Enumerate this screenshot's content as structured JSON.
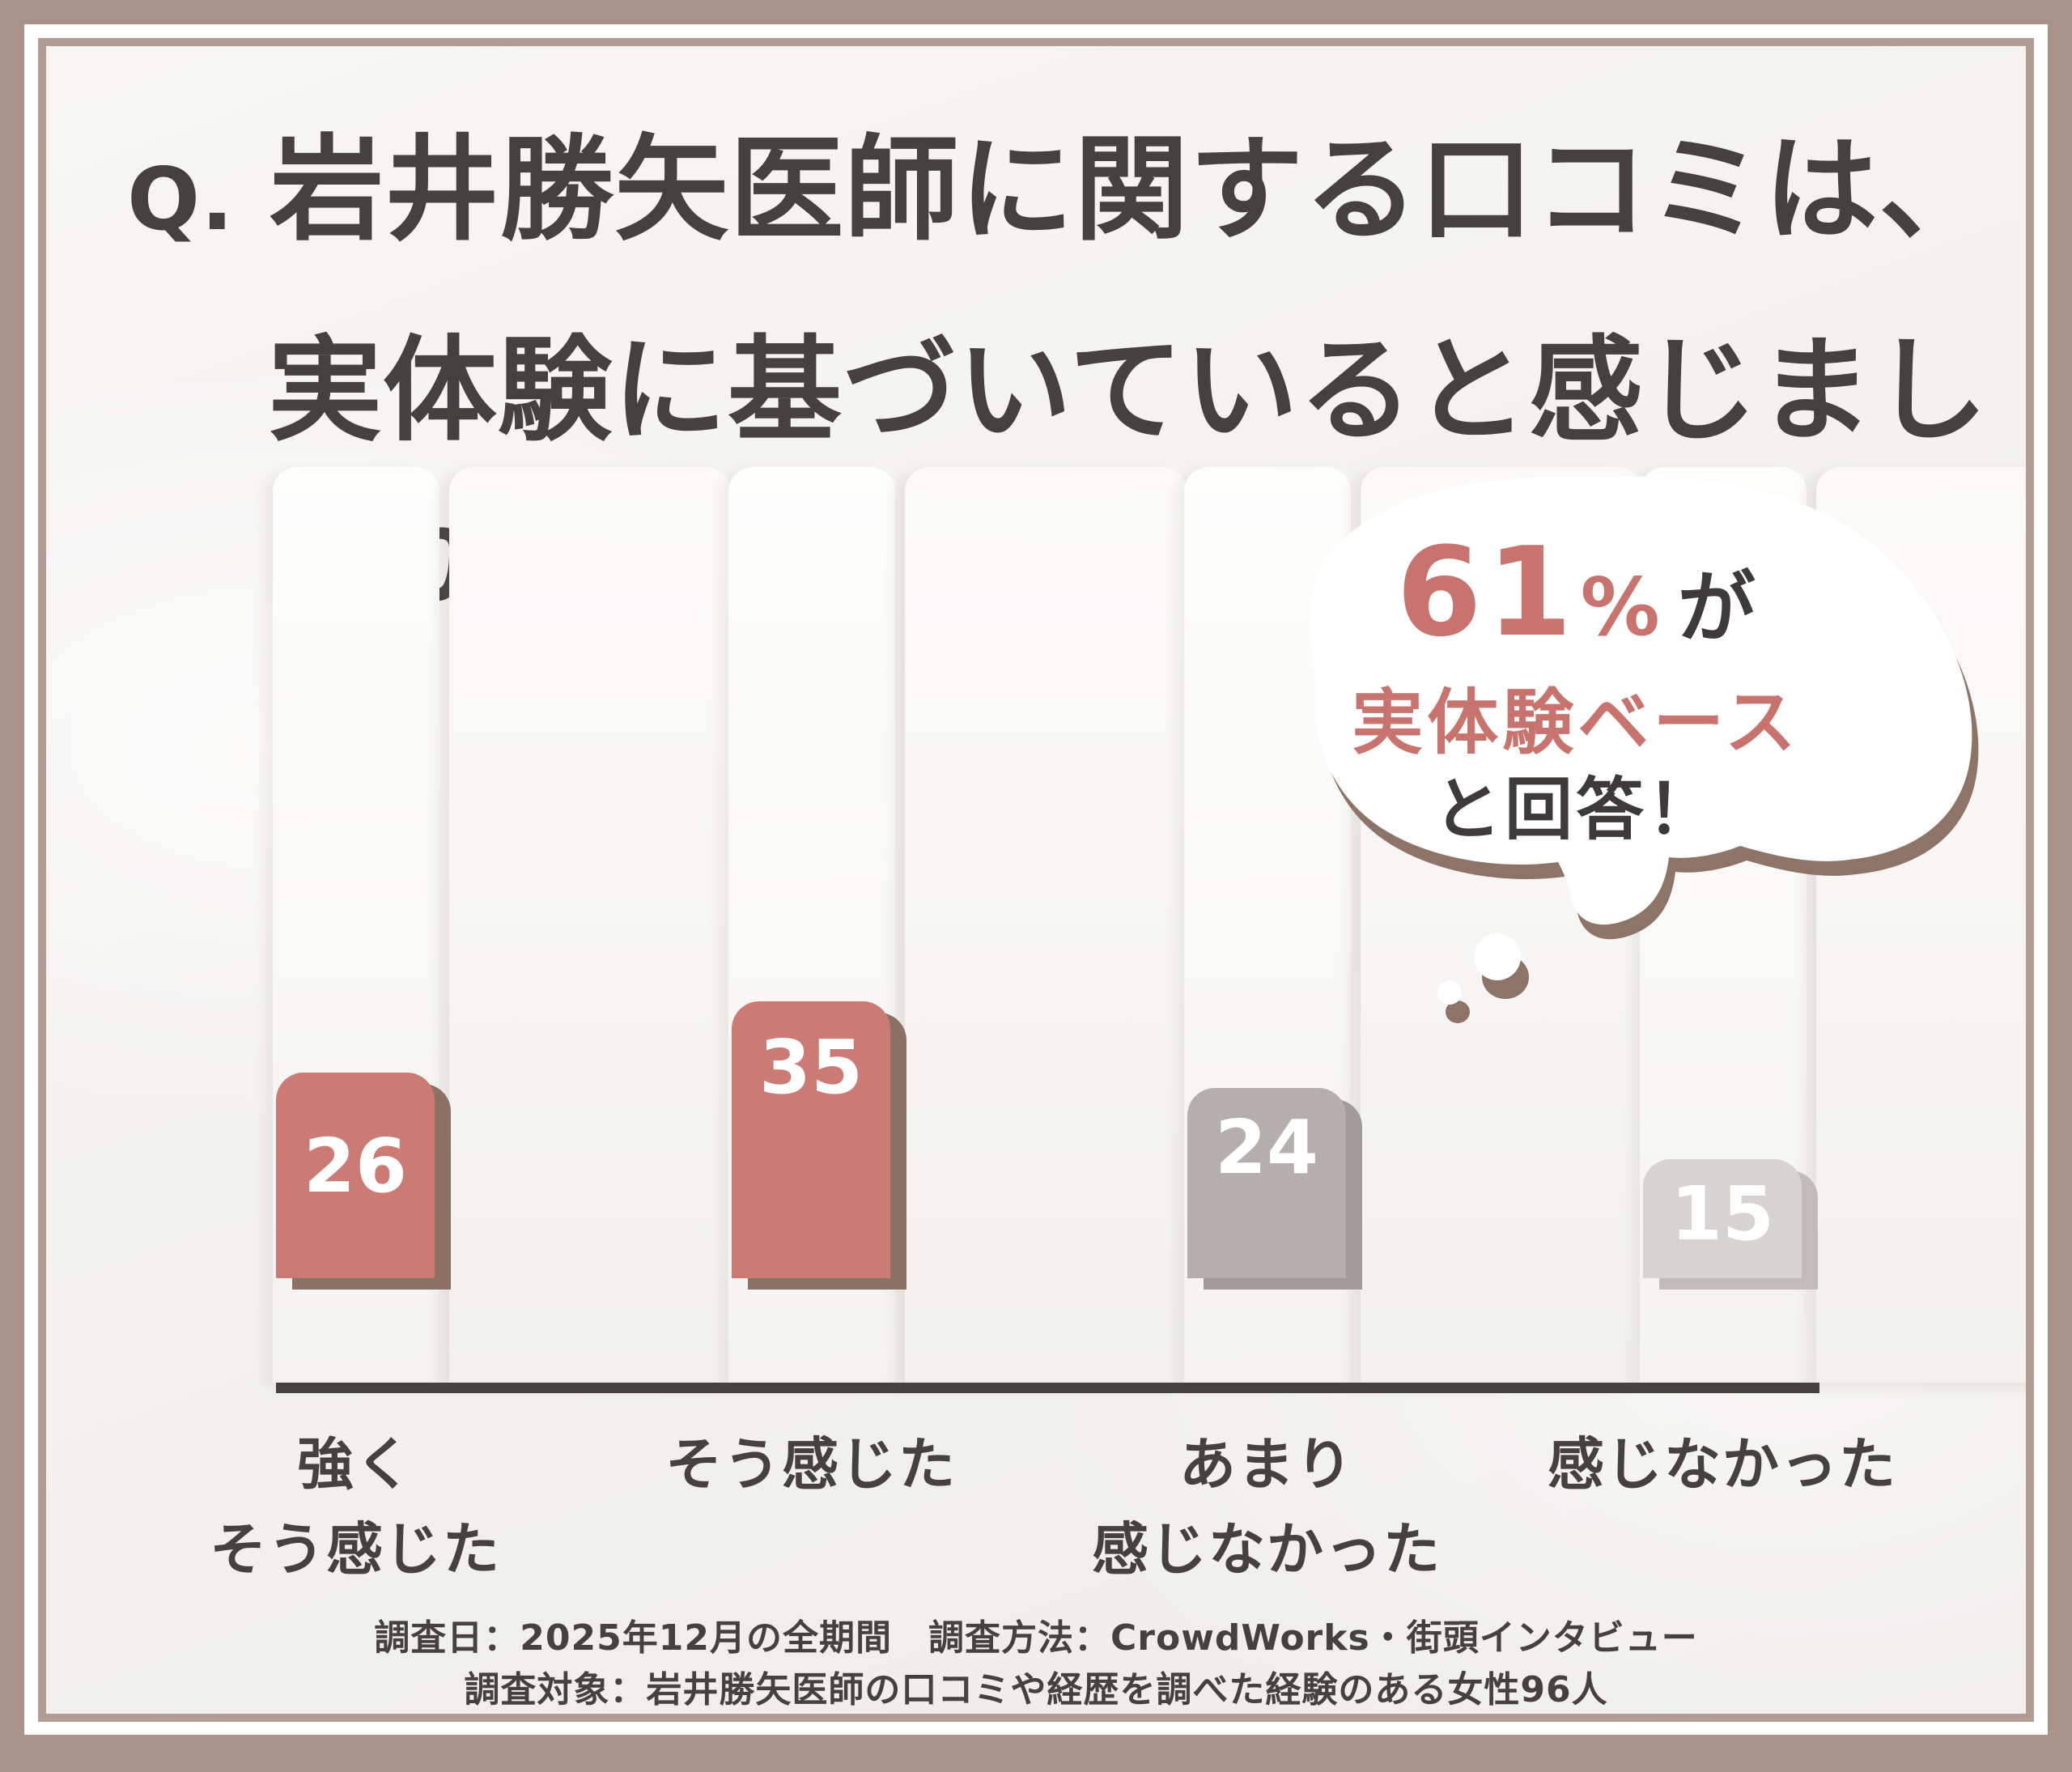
{
  "title": {
    "q_prefix": "Q.",
    "line1": "岩井勝矢医師に関する口コミは、",
    "line2": "実体験に基づいていると感じましたか？"
  },
  "chart_data": {
    "type": "bar",
    "title": "岩井勝矢医師に関する口コミは、実体験に基づいていると感じましたか？",
    "categories": [
      "強くそう感じた",
      "そう感じた",
      "あまり感じなかった",
      "感じなかった"
    ],
    "category_lines": [
      [
        "強く",
        "そう感じた"
      ],
      [
        "そう感じた"
      ],
      [
        "あまり",
        "感じなかった"
      ],
      [
        "感じなかった"
      ]
    ],
    "values": [
      26,
      35,
      24,
      15
    ],
    "value_labels": [
      "26",
      "35",
      "24",
      "15"
    ],
    "bar_colors": [
      "#cc7a74",
      "#cc7a74",
      "#b4afac",
      "#d6d3d1"
    ],
    "bar_shadow_colors": [
      "#8a7164",
      "#8a7164",
      "#a09b98",
      "#c1bcb9"
    ],
    "value_label_color": "#ffffff",
    "axis_line_color": "#45423f",
    "grid": false,
    "legend": false,
    "callout_text": "61%が実体験ベースと回答！"
  },
  "callout": {
    "percent": "61",
    "percent_sign": "%",
    "suffix": "が",
    "line2": "実体験ベース",
    "line3": "と回答！",
    "accent_color": "#c9736e",
    "text_color": "#3e3a39"
  },
  "footer": {
    "line1": "調査日：2025年12月の全期間　調査方法：CrowdWorks・街頭インタビュー",
    "line2": "調査対象：岩井勝矢医師の口コミや経歴を調べた経験のある女性96人"
  },
  "colors": {
    "frame": "#a9928a",
    "frame_inner_line": "#b29b92",
    "background": "#f2f1ef",
    "title_text": "#454140",
    "accent_salmon": "#c9736e",
    "bubble_shadow": "#8e7367"
  }
}
